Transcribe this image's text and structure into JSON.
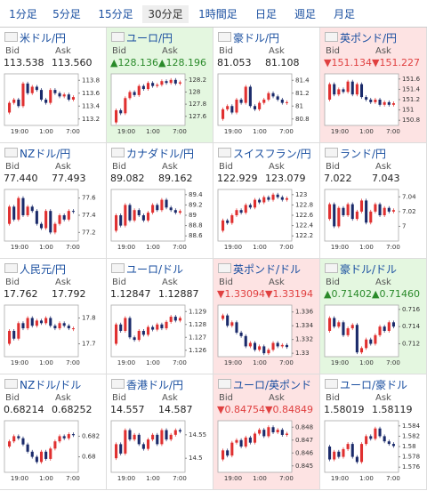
{
  "tabs": {
    "items": [
      "1分足",
      "5分足",
      "15分足",
      "30分足",
      "1時間足",
      "日足",
      "週足",
      "月足"
    ],
    "selected": 3
  },
  "bid_label": "Bid",
  "ask_label": "Ask",
  "x_labels": [
    "19:00",
    "1:00",
    "7:00"
  ],
  "cells": [
    {
      "name": "米ドル/円",
      "bid": "113.538",
      "ask": "113.560",
      "bg": "#ffffff",
      "value_color": "#222222",
      "ylim": [
        113.1,
        113.9
      ],
      "yticks": [
        113.8,
        113.6,
        113.4,
        113.2
      ],
      "values": [
        113.3,
        113.45,
        113.5,
        113.4,
        113.75,
        113.6,
        113.7,
        113.65,
        113.5,
        113.45,
        113.65,
        113.6,
        113.55,
        113.58,
        113.5,
        113.54
      ]
    },
    {
      "name": "ユーロ/円",
      "bid": "▲128.136",
      "ask": "▲128.196",
      "bg": "#e4f7e0",
      "value_color": "#2a8a2a",
      "ylim": [
        127.45,
        128.3
      ],
      "yticks": [
        128.2,
        128,
        127.8,
        127.6
      ],
      "values": [
        127.5,
        127.7,
        127.65,
        127.9,
        128.0,
        127.95,
        128.1,
        128.05,
        128.15,
        128.1,
        128.12,
        128.18,
        128.15,
        128.2,
        128.14,
        128.16
      ]
    },
    {
      "name": "豪ドル/円",
      "bid": "81.053",
      "ask": "81.108",
      "bg": "#ffffff",
      "value_color": "#222222",
      "ylim": [
        80.7,
        81.5
      ],
      "yticks": [
        81.4,
        81.2,
        81,
        80.8
      ],
      "values": [
        80.8,
        80.95,
        81.0,
        80.9,
        81.1,
        81.05,
        81.3,
        81.0,
        80.95,
        81.05,
        81.1,
        81.2,
        81.15,
        81.1,
        81.05,
        81.06
      ]
    },
    {
      "name": "英ポンド/円",
      "bid": "▼151.134",
      "ask": "▼151.227",
      "bg": "#fde3e3",
      "value_color": "#e04040",
      "ylim": [
        150.7,
        151.7
      ],
      "yticks": [
        151.6,
        151.4,
        151.2,
        151,
        150.8
      ],
      "values": [
        151.2,
        151.5,
        151.3,
        151.4,
        151.35,
        151.55,
        151.3,
        151.5,
        151.25,
        151.2,
        151.15,
        151.2,
        151.1,
        151.15,
        151.1,
        151.13
      ]
    },
    {
      "name": "NZドル/円",
      "bid": "77.440",
      "ask": "77.493",
      "bg": "#ffffff",
      "value_color": "#222222",
      "ylim": [
        77.1,
        77.7
      ],
      "yticks": [
        77.6,
        77.4,
        77.2
      ],
      "values": [
        77.3,
        77.5,
        77.35,
        77.6,
        77.4,
        77.5,
        77.45,
        77.3,
        77.25,
        77.45,
        77.2,
        77.3,
        77.4,
        77.35,
        77.45,
        77.44
      ]
    },
    {
      "name": "カナダドル/円",
      "bid": "89.082",
      "ask": "89.162",
      "bg": "#ffffff",
      "value_color": "#222222",
      "ylim": [
        88.5,
        89.5
      ],
      "yticks": [
        89.4,
        89.2,
        89,
        88.8,
        88.6
      ],
      "values": [
        88.7,
        89.0,
        88.8,
        89.2,
        88.9,
        89.1,
        89.0,
        88.9,
        89.05,
        89.2,
        89.1,
        89.3,
        89.15,
        89.1,
        89.05,
        89.08
      ]
    },
    {
      "name": "スイスフラン/円",
      "bid": "122.929",
      "ask": "123.079",
      "bg": "#ffffff",
      "value_color": "#222222",
      "ylim": [
        122.1,
        123.1
      ],
      "yticks": [
        123,
        122.8,
        122.6,
        122.4,
        122.2
      ],
      "values": [
        122.3,
        122.5,
        122.45,
        122.6,
        122.7,
        122.65,
        122.8,
        122.75,
        122.9,
        122.85,
        122.95,
        122.9,
        123.0,
        122.95,
        122.9,
        122.93
      ]
    },
    {
      "name": "ランド/円",
      "bid": "7.022",
      "ask": "7.043",
      "bg": "#ffffff",
      "value_color": "#222222",
      "ylim": [
        6.98,
        7.05
      ],
      "yticks": [
        7.04,
        7.02,
        7
      ],
      "values": [
        7.01,
        7.03,
        7.0,
        7.025,
        7.015,
        7.03,
        7.01,
        7.02,
        7.035,
        7.005,
        7.02,
        7.03,
        7.015,
        7.025,
        7.02,
        7.022
      ]
    },
    {
      "name": "人民元/円",
      "bid": "17.762",
      "ask": "17.792",
      "bg": "#ffffff",
      "value_color": "#222222",
      "ylim": [
        17.65,
        17.85
      ],
      "yticks": [
        17.8,
        17.7
      ],
      "values": [
        17.7,
        17.75,
        17.72,
        17.78,
        17.76,
        17.8,
        17.77,
        17.79,
        17.78,
        17.8,
        17.77,
        17.76,
        17.78,
        17.77,
        17.76,
        17.76
      ]
    },
    {
      "name": "ユーロ/ドル",
      "bid": "1.12847",
      "ask": "1.12887",
      "bg": "#ffffff",
      "value_color": "#222222",
      "ylim": [
        1.1255,
        1.1295
      ],
      "yticks": [
        1.129,
        1.128,
        1.127,
        1.126
      ],
      "values": [
        1.1265,
        1.128,
        1.1275,
        1.1285,
        1.127,
        1.1268,
        1.1275,
        1.1272,
        1.1278,
        1.1276,
        1.128,
        1.1277,
        1.1282,
        1.1286,
        1.1283,
        1.1285
      ]
    },
    {
      "name": "英ポンド/ドル",
      "bid": "▼1.33094",
      "ask": "▼1.33194",
      "bg": "#fde3e3",
      "value_color": "#e04040",
      "ylim": [
        1.3295,
        1.337
      ],
      "yticks": [
        1.336,
        1.334,
        1.332,
        1.33
      ],
      "values": [
        1.335,
        1.3355,
        1.334,
        1.3345,
        1.333,
        1.3325,
        1.331,
        1.3315,
        1.3305,
        1.331,
        1.33,
        1.3305,
        1.3315,
        1.331,
        1.3312,
        1.3309
      ]
    },
    {
      "name": "豪ドル/ドル",
      "bid": "▲0.71402",
      "ask": "▲0.71460",
      "bg": "#e4f7e0",
      "value_color": "#2a8a2a",
      "ylim": [
        0.7105,
        0.7165
      ],
      "yticks": [
        0.716,
        0.714,
        0.712
      ],
      "values": [
        0.7135,
        0.715,
        0.714,
        0.7145,
        0.713,
        0.7138,
        0.7142,
        0.711,
        0.7115,
        0.7125,
        0.712,
        0.713,
        0.714,
        0.7135,
        0.7145,
        0.714
      ]
    },
    {
      "name": "NZドル/ドル",
      "bid": "0.68214",
      "ask": "0.68252",
      "bg": "#ffffff",
      "value_color": "#222222",
      "ylim": [
        0.6785,
        0.6835
      ],
      "yticks": [
        0.682,
        0.68
      ],
      "values": [
        0.681,
        0.6815,
        0.682,
        0.6818,
        0.6812,
        0.6805,
        0.68,
        0.6795,
        0.6805,
        0.6798,
        0.6808,
        0.6815,
        0.682,
        0.6818,
        0.6822,
        0.6821
      ]
    },
    {
      "name": "香港ドル/円",
      "bid": "14.557",
      "ask": "14.587",
      "bg": "#ffffff",
      "value_color": "#222222",
      "ylim": [
        14.47,
        14.58
      ],
      "yticks": [
        14.55,
        14.5
      ],
      "values": [
        14.5,
        14.53,
        14.51,
        14.56,
        14.54,
        14.55,
        14.53,
        14.52,
        14.54,
        14.55,
        14.53,
        14.56,
        14.54,
        14.55,
        14.56,
        14.557
      ]
    },
    {
      "name": "ユーロ/英ポンド",
      "bid": "▼0.84754",
      "ask": "▼0.84849",
      "bg": "#fde3e3",
      "value_color": "#e04040",
      "ylim": [
        0.8445,
        0.8485
      ],
      "yticks": [
        0.848,
        0.847,
        0.846,
        0.845
      ],
      "values": [
        0.8455,
        0.8462,
        0.8458,
        0.8468,
        0.847,
        0.8465,
        0.8472,
        0.8468,
        0.8475,
        0.8478,
        0.8473,
        0.848,
        0.8476,
        0.8478,
        0.8474,
        0.8475
      ]
    },
    {
      "name": "ユーロ/豪ドル",
      "bid": "1.58019",
      "ask": "1.58119",
      "bg": "#ffffff",
      "value_color": "#222222",
      "ylim": [
        1.575,
        1.585
      ],
      "yticks": [
        1.584,
        1.582,
        1.58,
        1.578,
        1.576
      ],
      "values": [
        1.58,
        1.5775,
        1.579,
        1.578,
        1.5795,
        1.5805,
        1.578,
        1.577,
        1.5805,
        1.582,
        1.5815,
        1.5835,
        1.582,
        1.581,
        1.5805,
        1.5801
      ]
    }
  ]
}
